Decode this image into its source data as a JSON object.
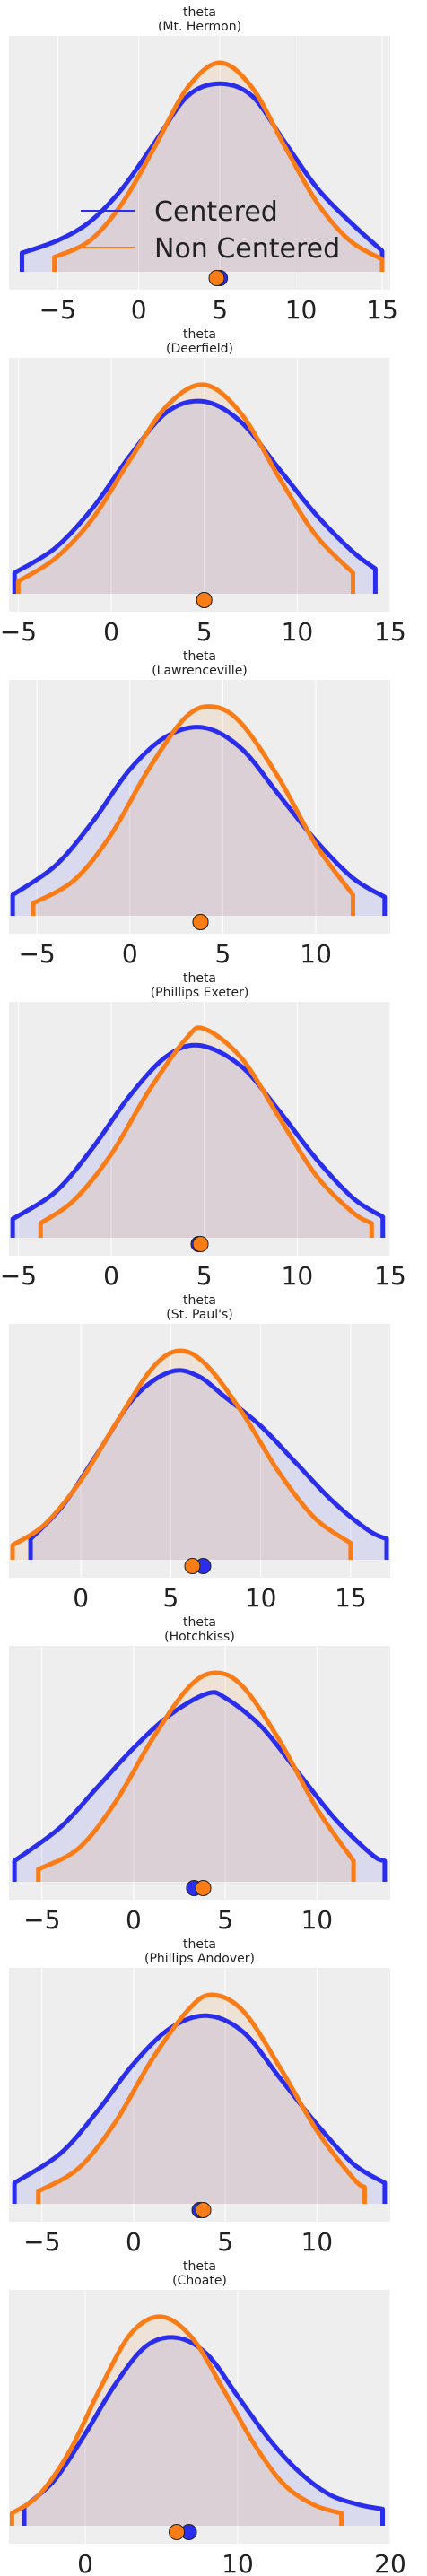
{
  "legend": {
    "items": [
      {
        "label": "Centered",
        "color": "#2a2eec"
      },
      {
        "label": "Non Centered",
        "color": "#fa7c17"
      }
    ]
  },
  "style": {
    "panel_background": "#eeeeee",
    "grid_color": "#ffffff",
    "fill_color": "#c9a2ad"
  },
  "chart_data": [
    {
      "type": "area",
      "title": "theta",
      "subtitle": "(Mt. Hermon)",
      "xlim": [
        -8,
        15.5
      ],
      "xticks": [
        -5,
        0,
        5,
        10,
        15
      ],
      "grid": true,
      "legend": "left",
      "series": [
        {
          "name": "Centered",
          "color": "#2a2eec",
          "mean": 5.0,
          "range": [
            -7.2,
            15.0
          ],
          "points": [
            [
              -7.2,
              0.09
            ],
            [
              -5,
              0.15
            ],
            [
              -3,
              0.24
            ],
            [
              -1,
              0.4
            ],
            [
              1,
              0.62
            ],
            [
              3,
              0.84
            ],
            [
              5,
              0.9
            ],
            [
              7,
              0.84
            ],
            [
              9,
              0.62
            ],
            [
              11,
              0.4
            ],
            [
              13,
              0.24
            ],
            [
              15,
              0.1
            ]
          ]
        },
        {
          "name": "Non Centered",
          "color": "#fa7c17",
          "mean": 4.8,
          "range": [
            -5.2,
            15.0
          ],
          "points": [
            [
              -5.2,
              0.07
            ],
            [
              -3,
              0.15
            ],
            [
              -1,
              0.33
            ],
            [
              1,
              0.6
            ],
            [
              3,
              0.88
            ],
            [
              5,
              1.0
            ],
            [
              7,
              0.88
            ],
            [
              9,
              0.6
            ],
            [
              11,
              0.33
            ],
            [
              13,
              0.15
            ],
            [
              15,
              0.06
            ]
          ]
        }
      ]
    },
    {
      "type": "area",
      "title": "theta",
      "subtitle": "(Deerfield)",
      "xlim": [
        -5.5,
        15
      ],
      "xticks": [
        -5,
        0,
        5,
        10,
        15
      ],
      "grid": true,
      "series": [
        {
          "name": "Centered",
          "color": "#2a2eec",
          "mean": 5.0,
          "range": [
            -5.2,
            14.2
          ],
          "points": [
            [
              -5.2,
              0.1
            ],
            [
              -3,
              0.22
            ],
            [
              -1,
              0.41
            ],
            [
              1,
              0.66
            ],
            [
              3,
              0.87
            ],
            [
              5,
              0.92
            ],
            [
              7,
              0.82
            ],
            [
              9,
              0.6
            ],
            [
              11,
              0.38
            ],
            [
              13,
              0.2
            ],
            [
              14.2,
              0.12
            ]
          ]
        },
        {
          "name": "Non Centered",
          "color": "#fa7c17",
          "mean": 5.0,
          "range": [
            -5.0,
            13.0
          ],
          "points": [
            [
              -5,
              0.06
            ],
            [
              -3,
              0.17
            ],
            [
              -1,
              0.36
            ],
            [
              1,
              0.64
            ],
            [
              3,
              0.9
            ],
            [
              5,
              1.0
            ],
            [
              7,
              0.86
            ],
            [
              9,
              0.56
            ],
            [
              11,
              0.28
            ],
            [
              13,
              0.1
            ]
          ]
        }
      ]
    },
    {
      "type": "area",
      "title": "theta",
      "subtitle": "(Lawrenceville)",
      "xlim": [
        -6.5,
        14
      ],
      "xticks": [
        -5,
        0,
        5,
        10
      ],
      "grid": true,
      "series": [
        {
          "name": "Centered",
          "color": "#2a2eec",
          "mean": 3.8,
          "range": [
            -6.3,
            13.7
          ],
          "points": [
            [
              -6.3,
              0.1
            ],
            [
              -4,
              0.24
            ],
            [
              -2,
              0.45
            ],
            [
              0,
              0.7
            ],
            [
              2,
              0.86
            ],
            [
              4,
              0.9
            ],
            [
              6,
              0.8
            ],
            [
              8,
              0.58
            ],
            [
              10,
              0.36
            ],
            [
              12,
              0.18
            ],
            [
              13.7,
              0.09
            ]
          ]
        },
        {
          "name": "Non Centered",
          "color": "#fa7c17",
          "mean": 3.8,
          "range": [
            -5.2,
            12.0
          ],
          "points": [
            [
              -5.2,
              0.06
            ],
            [
              -3,
              0.17
            ],
            [
              -1,
              0.39
            ],
            [
              1,
              0.7
            ],
            [
              3,
              0.95
            ],
            [
              4.5,
              1.0
            ],
            [
              6,
              0.92
            ],
            [
              8,
              0.66
            ],
            [
              10,
              0.34
            ],
            [
              12,
              0.1
            ]
          ]
        }
      ]
    },
    {
      "type": "area",
      "title": "theta",
      "subtitle": "(Phillips Exeter)",
      "xlim": [
        -5.5,
        15
      ],
      "xticks": [
        -5,
        0,
        5,
        10,
        15
      ],
      "grid": true,
      "series": [
        {
          "name": "Centered",
          "color": "#2a2eec",
          "mean": 4.7,
          "range": [
            -5.3,
            14.6
          ],
          "points": [
            [
              -5.3,
              0.09
            ],
            [
              -3,
              0.22
            ],
            [
              -1,
              0.43
            ],
            [
              1,
              0.68
            ],
            [
              3,
              0.87
            ],
            [
              4.8,
              0.92
            ],
            [
              7,
              0.82
            ],
            [
              9,
              0.61
            ],
            [
              11,
              0.38
            ],
            [
              13,
              0.19
            ],
            [
              14.6,
              0.1
            ]
          ]
        },
        {
          "name": "Non Centered",
          "color": "#fa7c17",
          "mean": 4.8,
          "range": [
            -3.8,
            14.0
          ],
          "points": [
            [
              -3.8,
              0.07
            ],
            [
              -2,
              0.18
            ],
            [
              0,
              0.4
            ],
            [
              2,
              0.7
            ],
            [
              4,
              0.95
            ],
            [
              5,
              1.0
            ],
            [
              7,
              0.86
            ],
            [
              9,
              0.58
            ],
            [
              11,
              0.3
            ],
            [
              13,
              0.12
            ],
            [
              14,
              0.07
            ]
          ]
        }
      ]
    },
    {
      "type": "area",
      "title": "theta",
      "subtitle": "(St. Paul's)",
      "xlim": [
        -4,
        17.2
      ],
      "xticks": [
        0,
        5,
        10,
        15
      ],
      "grid": true,
      "series": [
        {
          "name": "Centered",
          "color": "#2a2eec",
          "mean": 6.8,
          "range": [
            -2.8,
            17.0
          ],
          "points": [
            [
              -2.8,
              0.1
            ],
            [
              -1,
              0.26
            ],
            [
              1,
              0.52
            ],
            [
              3,
              0.78
            ],
            [
              5,
              0.9
            ],
            [
              6.5,
              0.88
            ],
            [
              8,
              0.78
            ],
            [
              10,
              0.64
            ],
            [
              12,
              0.46
            ],
            [
              14,
              0.28
            ],
            [
              16,
              0.14
            ],
            [
              17,
              0.1
            ]
          ]
        },
        {
          "name": "Non Centered",
          "color": "#fa7c17",
          "mean": 6.2,
          "range": [
            -3.8,
            15.0
          ],
          "points": [
            [
              -3.8,
              0.07
            ],
            [
              -2,
              0.17
            ],
            [
              0,
              0.38
            ],
            [
              2,
              0.66
            ],
            [
              4,
              0.92
            ],
            [
              5.5,
              1.0
            ],
            [
              7,
              0.93
            ],
            [
              9,
              0.7
            ],
            [
              11,
              0.42
            ],
            [
              13,
              0.2
            ],
            [
              15,
              0.08
            ]
          ]
        }
      ]
    },
    {
      "type": "area",
      "title": "theta",
      "subtitle": "(Hotchkiss)",
      "xlim": [
        -6.8,
        14
      ],
      "xticks": [
        -5,
        0,
        5,
        10
      ],
      "grid": true,
      "series": [
        {
          "name": "Centered",
          "color": "#2a2eec",
          "mean": 3.3,
          "range": [
            -6.5,
            13.7
          ],
          "points": [
            [
              -6.5,
              0.1
            ],
            [
              -4,
              0.26
            ],
            [
              -2,
              0.45
            ],
            [
              0,
              0.64
            ],
            [
              2,
              0.8
            ],
            [
              4,
              0.9
            ],
            [
              5,
              0.88
            ],
            [
              7,
              0.74
            ],
            [
              9,
              0.52
            ],
            [
              11,
              0.3
            ],
            [
              13,
              0.13
            ],
            [
              13.7,
              0.1
            ]
          ]
        },
        {
          "name": "Non Centered",
          "color": "#fa7c17",
          "mean": 3.8,
          "range": [
            -5.2,
            12.0
          ],
          "points": [
            [
              -5.2,
              0.06
            ],
            [
              -3,
              0.16
            ],
            [
              -1,
              0.38
            ],
            [
              1,
              0.68
            ],
            [
              3,
              0.93
            ],
            [
              4.5,
              1.0
            ],
            [
              6,
              0.93
            ],
            [
              8,
              0.67
            ],
            [
              10,
              0.35
            ],
            [
              12,
              0.1
            ]
          ]
        }
      ]
    },
    {
      "type": "area",
      "title": "theta",
      "subtitle": "(Phillips Andover)",
      "xlim": [
        -6.8,
        14
      ],
      "xticks": [
        -5,
        0,
        5,
        10
      ],
      "grid": true,
      "series": [
        {
          "name": "Centered",
          "color": "#2a2eec",
          "mean": 3.6,
          "range": [
            -6.5,
            13.7
          ],
          "points": [
            [
              -6.5,
              0.1
            ],
            [
              -4,
              0.24
            ],
            [
              -2,
              0.44
            ],
            [
              0,
              0.67
            ],
            [
              2,
              0.84
            ],
            [
              4,
              0.9
            ],
            [
              6,
              0.82
            ],
            [
              8,
              0.6
            ],
            [
              10,
              0.38
            ],
            [
              12,
              0.19
            ],
            [
              13.7,
              0.1
            ]
          ]
        },
        {
          "name": "Non Centered",
          "color": "#fa7c17",
          "mean": 3.8,
          "range": [
            -5.2,
            12.6
          ],
          "points": [
            [
              -5.2,
              0.06
            ],
            [
              -3,
              0.17
            ],
            [
              -1,
              0.39
            ],
            [
              1,
              0.69
            ],
            [
              3,
              0.93
            ],
            [
              4.3,
              1.0
            ],
            [
              6,
              0.92
            ],
            [
              8,
              0.65
            ],
            [
              10,
              0.35
            ],
            [
              12,
              0.12
            ],
            [
              12.6,
              0.08
            ]
          ]
        }
      ]
    },
    {
      "type": "area",
      "title": "theta",
      "subtitle": "(Choate)",
      "xlim": [
        -5,
        20
      ],
      "xticks": [
        0,
        10,
        20
      ],
      "grid": true,
      "series": [
        {
          "name": "Centered",
          "color": "#2a2eec",
          "mean": 6.8,
          "range": [
            -4.0,
            19.5
          ],
          "points": [
            [
              -4,
              0.09
            ],
            [
              -2,
              0.22
            ],
            [
              0,
              0.44
            ],
            [
              2,
              0.68
            ],
            [
              4,
              0.86
            ],
            [
              6,
              0.9
            ],
            [
              8,
              0.82
            ],
            [
              10,
              0.62
            ],
            [
              12,
              0.42
            ],
            [
              14,
              0.26
            ],
            [
              16,
              0.15
            ],
            [
              18,
              0.1
            ],
            [
              19.5,
              0.08
            ]
          ]
        },
        {
          "name": "Non Centered",
          "color": "#fa7c17",
          "mean": 6.0,
          "range": [
            -4.8,
            16.8
          ],
          "points": [
            [
              -4.8,
              0.06
            ],
            [
              -3,
              0.15
            ],
            [
              -1,
              0.36
            ],
            [
              1,
              0.66
            ],
            [
              3,
              0.92
            ],
            [
              5,
              1.0
            ],
            [
              7,
              0.9
            ],
            [
              9,
              0.66
            ],
            [
              11,
              0.4
            ],
            [
              13,
              0.2
            ],
            [
              15,
              0.1
            ],
            [
              16.8,
              0.06
            ]
          ]
        }
      ]
    }
  ]
}
